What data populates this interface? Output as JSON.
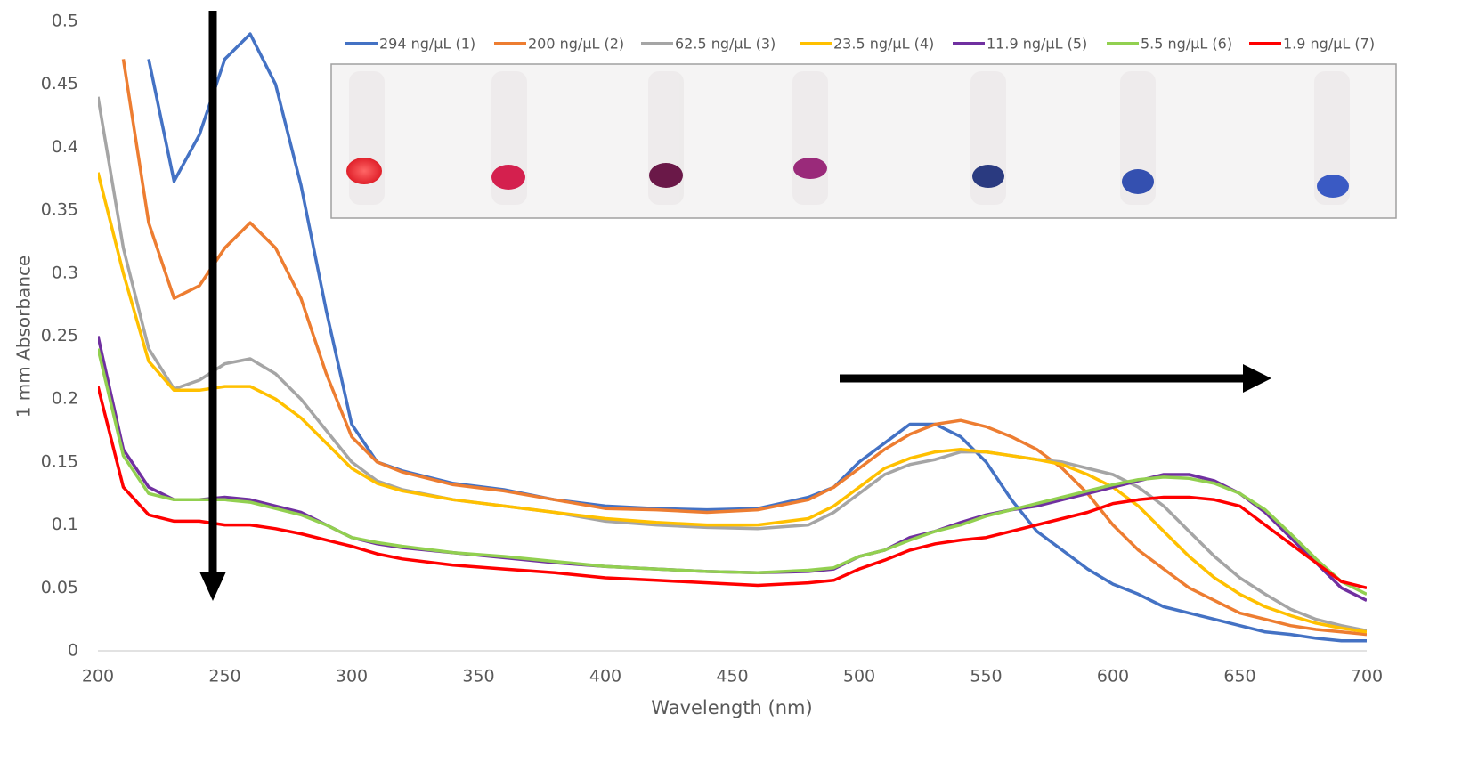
{
  "chart_data": {
    "type": "line",
    "x_label": "Wavelength (nm)",
    "y_label": "1 mm Absorbance",
    "xlim": [
      200,
      700
    ],
    "xticks": [
      200,
      250,
      300,
      350,
      400,
      450,
      500,
      550,
      600,
      650,
      700
    ],
    "ylim": [
      0,
      0.5
    ],
    "yticks": [
      0,
      0.05,
      0.1,
      0.15,
      0.2,
      0.25,
      0.3,
      0.35,
      0.4,
      0.45,
      0.5
    ],
    "grid": false,
    "legend": "top",
    "x": [
      200,
      210,
      220,
      230,
      240,
      250,
      260,
      270,
      280,
      290,
      300,
      310,
      320,
      340,
      360,
      380,
      400,
      420,
      440,
      460,
      480,
      490,
      500,
      510,
      520,
      530,
      540,
      550,
      560,
      570,
      580,
      590,
      600,
      610,
      620,
      630,
      640,
      650,
      660,
      670,
      680,
      690,
      700
    ],
    "series": [
      {
        "name": "294 ng/µL (1)",
        "color": "#4472c4",
        "values": [
          null,
          null,
          0.47,
          0.373,
          0.41,
          0.47,
          0.49,
          0.45,
          0.37,
          0.27,
          0.18,
          0.15,
          0.143,
          0.133,
          0.128,
          0.12,
          0.115,
          0.113,
          0.112,
          0.113,
          0.122,
          0.13,
          0.15,
          0.165,
          0.18,
          0.18,
          0.17,
          0.15,
          0.12,
          0.095,
          0.08,
          0.065,
          0.053,
          0.045,
          0.035,
          0.03,
          0.025,
          0.02,
          0.015,
          0.013,
          0.01,
          0.008,
          0.008
        ]
      },
      {
        "name": "200 ng/µL (2)",
        "color": "#ed7d31",
        "values": [
          null,
          0.47,
          0.34,
          0.28,
          0.29,
          0.32,
          0.34,
          0.32,
          0.28,
          0.22,
          0.17,
          0.15,
          0.142,
          0.132,
          0.127,
          0.12,
          0.113,
          0.112,
          0.11,
          0.112,
          0.12,
          0.13,
          0.145,
          0.16,
          0.172,
          0.18,
          0.183,
          0.178,
          0.17,
          0.16,
          0.145,
          0.125,
          0.1,
          0.08,
          0.065,
          0.05,
          0.04,
          0.03,
          0.025,
          0.02,
          0.017,
          0.015,
          0.013
        ]
      },
      {
        "name": "62.5 ng/µL  (3)",
        "color": "#a5a5a5",
        "values": [
          0.44,
          0.32,
          0.24,
          0.208,
          0.215,
          0.228,
          0.232,
          0.22,
          0.2,
          0.175,
          0.15,
          0.135,
          0.128,
          0.12,
          0.115,
          0.11,
          0.103,
          0.1,
          0.098,
          0.097,
          0.1,
          0.11,
          0.125,
          0.14,
          0.148,
          0.152,
          0.158,
          0.158,
          0.155,
          0.152,
          0.15,
          0.145,
          0.14,
          0.13,
          0.115,
          0.095,
          0.075,
          0.058,
          0.045,
          0.033,
          0.025,
          0.02,
          0.016
        ]
      },
      {
        "name": "23.5 ng/µL (4)",
        "color": "#ffc000",
        "values": [
          0.38,
          0.3,
          0.23,
          0.207,
          0.207,
          0.21,
          0.21,
          0.2,
          0.185,
          0.165,
          0.145,
          0.133,
          0.127,
          0.12,
          0.115,
          0.11,
          0.105,
          0.102,
          0.1,
          0.1,
          0.105,
          0.115,
          0.13,
          0.145,
          0.153,
          0.158,
          0.16,
          0.158,
          0.155,
          0.152,
          0.148,
          0.14,
          0.13,
          0.115,
          0.095,
          0.075,
          0.058,
          0.045,
          0.035,
          0.028,
          0.022,
          0.018,
          0.015
        ]
      },
      {
        "name": "11.9 ng/µL (5)",
        "color": "#7030a0",
        "values": [
          0.25,
          0.16,
          0.13,
          0.12,
          0.12,
          0.122,
          0.12,
          0.115,
          0.11,
          0.1,
          0.09,
          0.085,
          0.082,
          0.078,
          0.074,
          0.07,
          0.067,
          0.065,
          0.063,
          0.062,
          0.063,
          0.065,
          0.075,
          0.08,
          0.09,
          0.095,
          0.102,
          0.108,
          0.112,
          0.115,
          0.12,
          0.125,
          0.13,
          0.135,
          0.14,
          0.14,
          0.135,
          0.125,
          0.11,
          0.09,
          0.07,
          0.05,
          0.04
        ]
      },
      {
        "name": "5.5 ng/µL (6)",
        "color": "#92d050",
        "values": [
          0.24,
          0.155,
          0.125,
          0.12,
          0.12,
          0.12,
          0.118,
          0.113,
          0.108,
          0.1,
          0.09,
          0.086,
          0.083,
          0.078,
          0.075,
          0.071,
          0.067,
          0.065,
          0.063,
          0.062,
          0.064,
          0.066,
          0.075,
          0.08,
          0.088,
          0.095,
          0.1,
          0.107,
          0.112,
          0.117,
          0.122,
          0.127,
          0.132,
          0.136,
          0.138,
          0.137,
          0.133,
          0.125,
          0.112,
          0.093,
          0.073,
          0.055,
          0.045
        ]
      },
      {
        "name": "1.9 ng/µL  (7)",
        "color": "#ff0000",
        "values": [
          0.21,
          0.13,
          0.108,
          0.103,
          0.103,
          0.1,
          0.1,
          0.097,
          0.093,
          0.088,
          0.083,
          0.077,
          0.073,
          0.068,
          0.065,
          0.062,
          0.058,
          0.056,
          0.054,
          0.052,
          0.054,
          0.056,
          0.065,
          0.072,
          0.08,
          0.085,
          0.088,
          0.09,
          0.095,
          0.1,
          0.105,
          0.11,
          0.117,
          0.12,
          0.122,
          0.122,
          0.12,
          0.115,
          0.1,
          0.085,
          0.07,
          0.055,
          0.05
        ]
      }
    ]
  }
}
